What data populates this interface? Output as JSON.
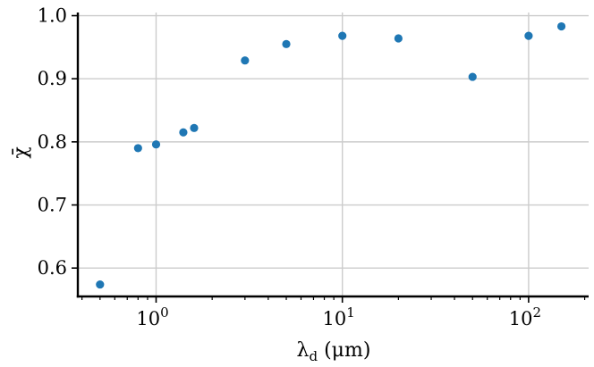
{
  "chart_data": {
    "type": "scatter",
    "xlabel": "λd (μm)",
    "xlabel_parts": {
      "symbol": "λ",
      "subscript": "d",
      "unit": " (μm)"
    },
    "ylabel": "χ̄",
    "xscale": "log",
    "xlim": [
      0.38,
      210
    ],
    "ylim": [
      0.555,
      1.005
    ],
    "grid": true,
    "series": [
      {
        "color": "#1f77b4",
        "points": [
          {
            "x": 0.5,
            "y": 0.574
          },
          {
            "x": 0.8,
            "y": 0.79
          },
          {
            "x": 1.0,
            "y": 0.796
          },
          {
            "x": 1.4,
            "y": 0.815
          },
          {
            "x": 1.6,
            "y": 0.822
          },
          {
            "x": 3,
            "y": 0.929
          },
          {
            "x": 5,
            "y": 0.955
          },
          {
            "x": 10,
            "y": 0.968
          },
          {
            "x": 20,
            "y": 0.964
          },
          {
            "x": 50,
            "y": 0.903
          },
          {
            "x": 100,
            "y": 0.968
          },
          {
            "x": 150,
            "y": 0.983
          }
        ]
      }
    ],
    "x_ticks": [
      {
        "value": 1,
        "base": "10",
        "exponent": "0"
      },
      {
        "value": 10,
        "base": "10",
        "exponent": "1"
      },
      {
        "value": 100,
        "base": "10",
        "exponent": "2"
      }
    ],
    "y_ticks": [
      {
        "value": 0.6,
        "label": "0.6"
      },
      {
        "value": 0.7,
        "label": "0.7"
      },
      {
        "value": 0.8,
        "label": "0.8"
      },
      {
        "value": 0.9,
        "label": "0.9"
      },
      {
        "value": 1.0,
        "label": "1.0"
      }
    ]
  }
}
